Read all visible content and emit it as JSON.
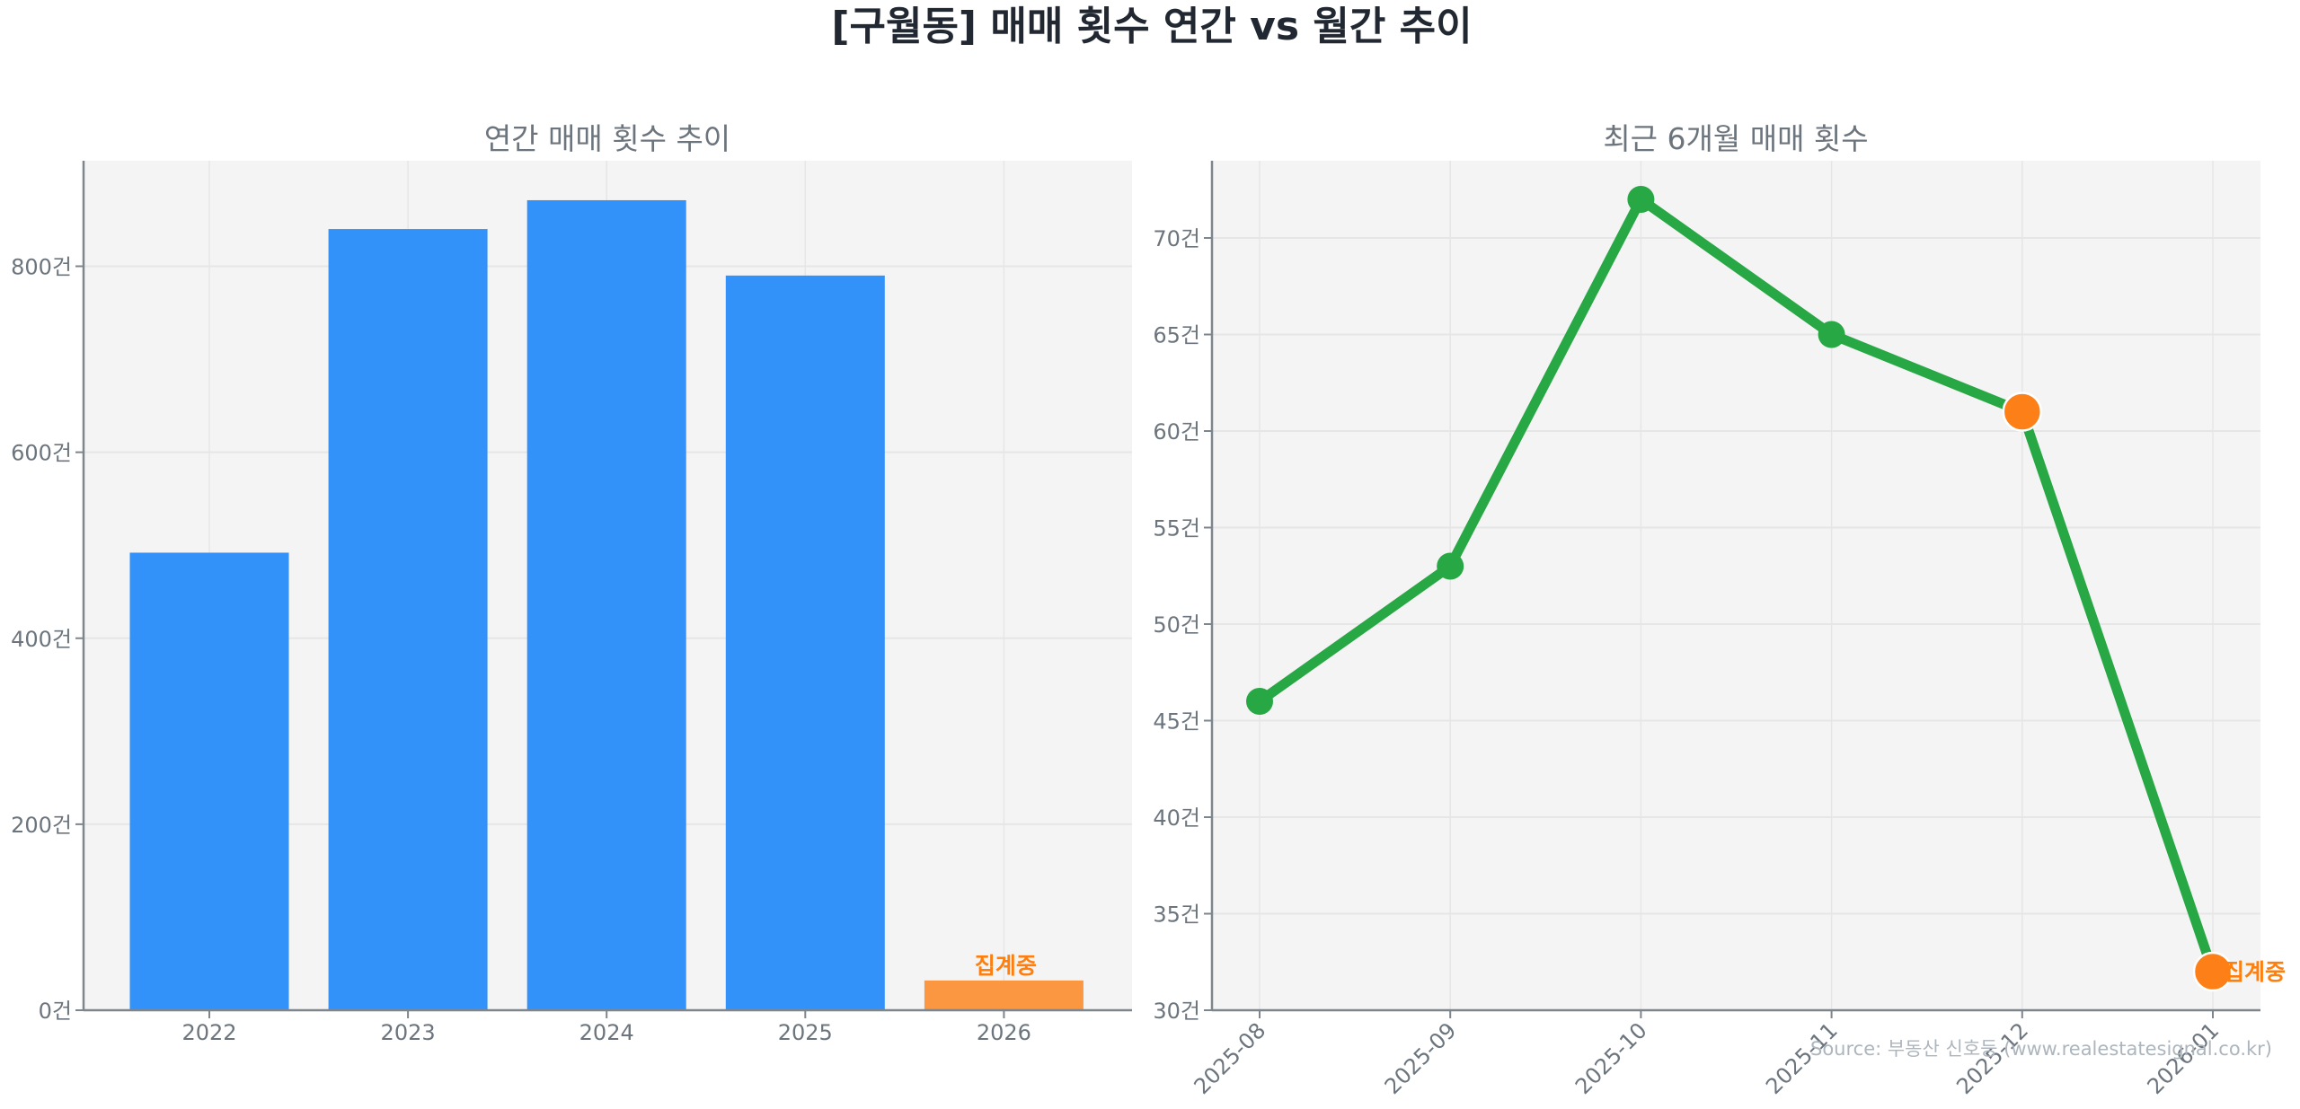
{
  "title": "[구월동] 매매 횟수 연간 vs 월간 추이",
  "source": "Source: 부동산 신호등 (www.realestatesignal.co.kr)",
  "colors": {
    "bar": "#3292fa",
    "bar_partial": "#fa9740",
    "line": "#28a745",
    "partial_marker": "#fd7f17",
    "partial_label": "#ff7f0e",
    "plot_bg": "#f4f4f4",
    "grid": "#e6e6e6",
    "axis": "#7d858d"
  },
  "chart_data": [
    {
      "type": "bar",
      "title": "연간 매매 횟수 추이",
      "xlabel": "",
      "ylabel": "",
      "categories": [
        "2022",
        "2023",
        "2024",
        "2025",
        "2026"
      ],
      "values": [
        492,
        840,
        871,
        790,
        32
      ],
      "partial": [
        false,
        false,
        false,
        false,
        true
      ],
      "annotations": [
        {
          "category": "2026",
          "text": "집계중"
        }
      ],
      "yticks": [
        0,
        200,
        400,
        600,
        800
      ],
      "ytick_labels": [
        "0건",
        "200건",
        "400건",
        "600건",
        "800건"
      ],
      "ylim": [
        0,
        914
      ],
      "grid": true
    },
    {
      "type": "line",
      "title": "최근 6개월 매매 횟수",
      "xlabel": "",
      "ylabel": "",
      "x": [
        "2025-08",
        "2025-09",
        "2025-10",
        "2025-11",
        "2025-12",
        "2026-01"
      ],
      "values": [
        46,
        53,
        72,
        65,
        61,
        32
      ],
      "highlighted": [
        false,
        false,
        false,
        false,
        true,
        true
      ],
      "annotations": [
        {
          "x": "2026-01",
          "text": "집계중"
        }
      ],
      "yticks": [
        30,
        35,
        40,
        45,
        50,
        55,
        60,
        65,
        70
      ],
      "ytick_labels": [
        "30건",
        "35건",
        "40건",
        "45건",
        "50건",
        "55건",
        "60건",
        "65건",
        "70건"
      ],
      "ylim": [
        30,
        74
      ],
      "grid": true
    }
  ]
}
